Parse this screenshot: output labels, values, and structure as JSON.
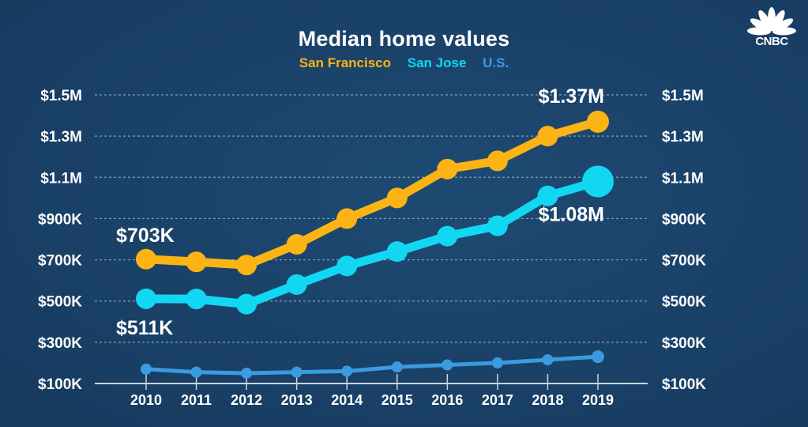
{
  "brand": {
    "logo_text": "CNBC"
  },
  "colors": {
    "san_francisco": "#fbb414",
    "san_jose": "#12d7f2",
    "us": "#3a9be0",
    "text": "#ffffff",
    "grid": "#9fb6cc"
  },
  "chart_data": {
    "type": "line",
    "title": "Median home values",
    "xlabel": "",
    "ylabel": "",
    "x": [
      "2010",
      "2011",
      "2012",
      "2013",
      "2014",
      "2015",
      "2016",
      "2017",
      "2018",
      "2019"
    ],
    "ylim": [
      100000,
      1500000
    ],
    "yticks": [
      100000,
      300000,
      500000,
      700000,
      900000,
      1100000,
      1300000,
      1500000
    ],
    "ytick_labels": [
      "$100K",
      "$300K",
      "$500K",
      "$700K",
      "$900K",
      "$1.1M",
      "$1.3M",
      "$1.5M"
    ],
    "grid": true,
    "legend_position": "top-center",
    "series": [
      {
        "name": "San Francisco",
        "color": "#fbb414",
        "values": [
          703000,
          690000,
          675000,
          775000,
          900000,
          1000000,
          1140000,
          1180000,
          1300000,
          1370000
        ]
      },
      {
        "name": "San Jose",
        "color": "#12d7f2",
        "values": [
          511000,
          510000,
          485000,
          580000,
          670000,
          740000,
          815000,
          865000,
          1010000,
          1080000
        ]
      },
      {
        "name": "U.S.",
        "color": "#3a9be0",
        "values": [
          170000,
          155000,
          150000,
          155000,
          160000,
          180000,
          190000,
          200000,
          215000,
          230000
        ]
      }
    ],
    "annotations": [
      {
        "series": "San Francisco",
        "x": "2010",
        "text": "$703K",
        "position": "above"
      },
      {
        "series": "San Jose",
        "x": "2010",
        "text": "$511K",
        "position": "below"
      },
      {
        "series": "San Francisco",
        "x": "2019",
        "text": "$1.37M",
        "position": "above"
      },
      {
        "series": "San Jose",
        "x": "2019",
        "text": "$1.08M",
        "position": "below"
      }
    ]
  }
}
